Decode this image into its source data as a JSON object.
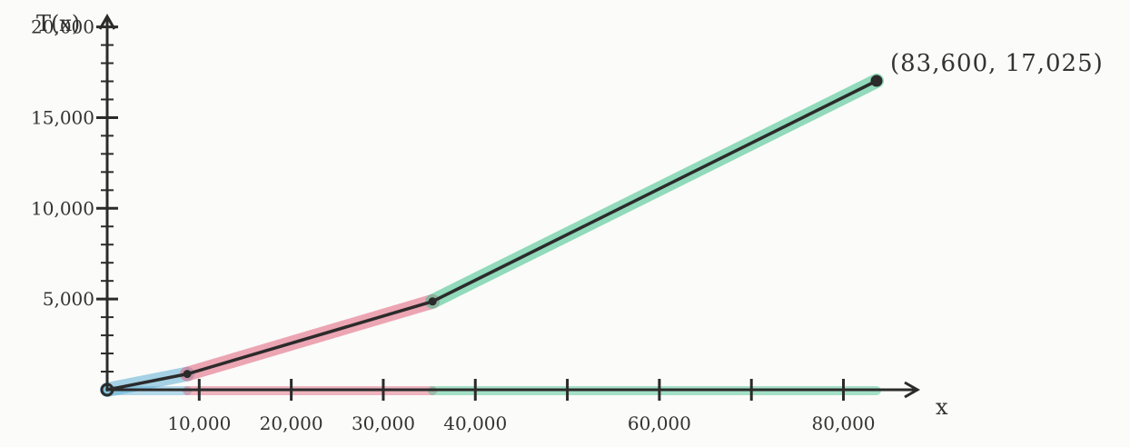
{
  "chart_data": {
    "type": "line",
    "y_axis_label": "T(x)",
    "x_axis_label": "x",
    "xlim": [
      0,
      87000
    ],
    "ylim": [
      0,
      20000
    ],
    "x_ticks": [
      {
        "value": 10000,
        "label": "10,000"
      },
      {
        "value": 20000,
        "label": "20,000"
      },
      {
        "value": 30000,
        "label": "30,000"
      },
      {
        "value": 40000,
        "label": "40,000"
      },
      {
        "value": 60000,
        "label": "60,000"
      },
      {
        "value": 80000,
        "label": "80,000"
      }
    ],
    "x_minor_ticks": [
      50000,
      70000
    ],
    "y_ticks": [
      {
        "value": 5000,
        "label": "5,000"
      },
      {
        "value": 10000,
        "label": "10,000"
      },
      {
        "value": 15000,
        "label": "15,000"
      },
      {
        "value": 20000,
        "label": "20,000"
      }
    ],
    "y_minor_step": 1000,
    "segments": [
      {
        "color": "#5fb0d6",
        "points": [
          [
            0,
            0
          ],
          [
            8700,
            870
          ]
        ]
      },
      {
        "color": "#e0607a",
        "points": [
          [
            8700,
            870
          ],
          [
            35350,
            4867
          ]
        ]
      },
      {
        "color": "#3cc08a",
        "points": [
          [
            35350,
            4867
          ],
          [
            83600,
            17025
          ]
        ]
      }
    ],
    "marked_points": [
      [
        0,
        0
      ],
      [
        8700,
        870
      ],
      [
        35350,
        4867
      ],
      [
        83600,
        17025
      ]
    ],
    "endpoint_annotation": "(83,600,  17,025)",
    "colors": {
      "ink": "#2b2b2b",
      "blue": "#5fb0d6",
      "red": "#e0607a",
      "green": "#3cc08a"
    }
  }
}
